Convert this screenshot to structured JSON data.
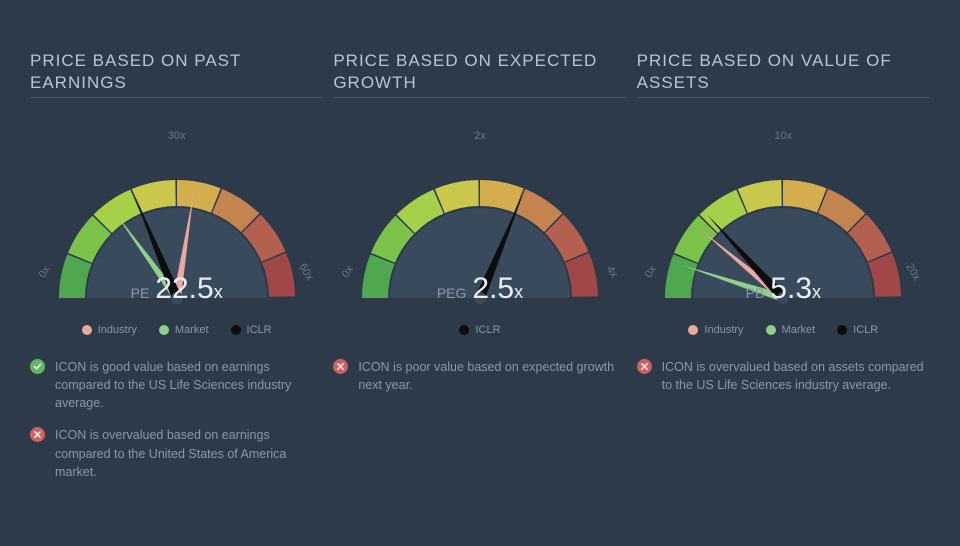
{
  "background_color": "#2c3a4a",
  "colors": {
    "title_text": "#b8c4d4",
    "muted_text": "#8a97a8",
    "value_text": "#e8eef5",
    "divider": "#4a5a6d",
    "industry": "#e8a9a0",
    "market": "#8fd08a",
    "iclr": "#0d0d0d",
    "good": "#5fb85f",
    "bad": "#d0605f",
    "gauge_bg": "#3a4a5d"
  },
  "gauge_arc_colors": [
    "#4fa850",
    "#7bc24a",
    "#a6cf4a",
    "#c9c84d",
    "#d4ae4e",
    "#c48450",
    "#b46050",
    "#a04848"
  ],
  "panels": [
    {
      "title": "PRICE BASED ON PAST EARNINGS",
      "metric_label": "PE",
      "value": "22.5",
      "suffix": "x",
      "min": 0,
      "max": 60,
      "ticks": [
        {
          "label": "0x",
          "pos": "left"
        },
        {
          "label": "30x",
          "pos": "top"
        },
        {
          "label": "60x",
          "pos": "right"
        }
      ],
      "needles": [
        {
          "key": "iclr",
          "value": 22.5,
          "color": "#0d0d0d"
        },
        {
          "key": "market",
          "value": 18,
          "color": "#8fd08a"
        },
        {
          "key": "industry",
          "value": 33,
          "color": "#e8a9a0"
        }
      ],
      "legend": [
        {
          "label": "Industry",
          "color": "#e8a9a0"
        },
        {
          "label": "Market",
          "color": "#8fd08a"
        },
        {
          "label": "ICLR",
          "color": "#0d0d0d"
        }
      ],
      "notes": [
        {
          "status": "good",
          "text": "ICON is good value based on earnings compared to the US Life Sciences industry average."
        },
        {
          "status": "bad",
          "text": "ICON is overvalued based on earnings compared to the United States of America market."
        }
      ]
    },
    {
      "title": "PRICE BASED ON EXPECTED GROWTH",
      "metric_label": "PEG",
      "value": "2.5",
      "suffix": "x",
      "min": 0,
      "max": 4,
      "ticks": [
        {
          "label": "0x",
          "pos": "left"
        },
        {
          "label": "2x",
          "pos": "top"
        },
        {
          "label": "4x",
          "pos": "right"
        }
      ],
      "needles": [
        {
          "key": "iclr",
          "value": 2.5,
          "color": "#0d0d0d"
        }
      ],
      "legend": [
        {
          "label": "ICLR",
          "color": "#0d0d0d"
        }
      ],
      "notes": [
        {
          "status": "bad",
          "text": "ICON is poor value based on expected growth next year."
        }
      ]
    },
    {
      "title": "PRICE BASED ON VALUE OF ASSETS",
      "metric_label": "PB",
      "value": "5.3",
      "suffix": "x",
      "min": 0,
      "max": 20,
      "ticks": [
        {
          "label": "0x",
          "pos": "left"
        },
        {
          "label": "10x",
          "pos": "top"
        },
        {
          "label": "20x",
          "pos": "right"
        }
      ],
      "needles": [
        {
          "key": "iclr",
          "value": 5.3,
          "color": "#0d0d0d"
        },
        {
          "key": "market",
          "value": 2.0,
          "color": "#8fd08a"
        },
        {
          "key": "industry",
          "value": 4.4,
          "color": "#e8a9a0"
        }
      ],
      "legend": [
        {
          "label": "Industry",
          "color": "#e8a9a0"
        },
        {
          "label": "Market",
          "color": "#8fd08a"
        },
        {
          "label": "ICLR",
          "color": "#0d0d0d"
        }
      ],
      "notes": [
        {
          "status": "bad",
          "text": "ICON is overvalued based on assets compared to the US Life Sciences industry average."
        }
      ]
    }
  ]
}
